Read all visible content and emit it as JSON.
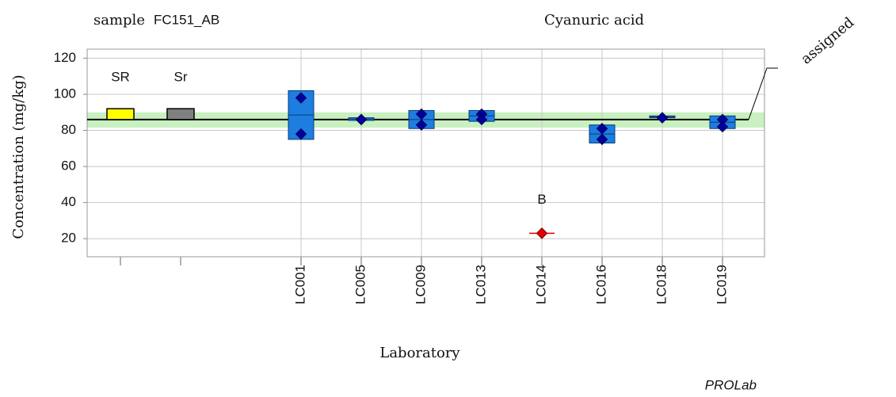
{
  "chart_data": {
    "type": "proficiency",
    "title": "Cyanuric acid",
    "sample_prefix": "sample",
    "sample_id": "FC151_AB",
    "y_label": "Concentration (mg/kg)",
    "x_label": "Laboratory",
    "assigned_label": "assigned",
    "brand": "PROLab",
    "categories": [
      null,
      null,
      null,
      "LC001",
      "LC005",
      "LC009",
      "LC013",
      "LC014",
      "LC016",
      "LC018",
      "LC019"
    ],
    "reference_bars": [
      {
        "label": "SR",
        "low": 86,
        "high": 92,
        "color": "#ffff00"
      },
      {
        "label": "Sr",
        "low": 86,
        "high": 92,
        "color": "#808080"
      }
    ],
    "replicate_1": [
      null,
      null,
      null,
      98,
      86,
      89,
      89,
      23,
      81,
      87,
      86
    ],
    "replicate_2": [
      null,
      null,
      null,
      78,
      86,
      83,
      86,
      23,
      75,
      87,
      82
    ],
    "box_low": [
      null,
      null,
      null,
      75,
      85.5,
      81,
      85,
      null,
      73,
      87,
      81
    ],
    "box_high": [
      null,
      null,
      null,
      102,
      87,
      91,
      91,
      null,
      83,
      88,
      88
    ],
    "flags": [
      null,
      null,
      null,
      null,
      null,
      null,
      null,
      "B",
      null,
      null,
      null
    ],
    "box_color": "#1e7de0",
    "marker_color": "#0000a0",
    "outlier_color": "#e00000",
    "assigned_value": 86,
    "tolerance_band": [
      81.5,
      90
    ],
    "band_color": "#c8f0c0",
    "ylim": [
      10,
      125
    ],
    "yticks": [
      20,
      40,
      60,
      80,
      100,
      120
    ],
    "grid": true
  }
}
